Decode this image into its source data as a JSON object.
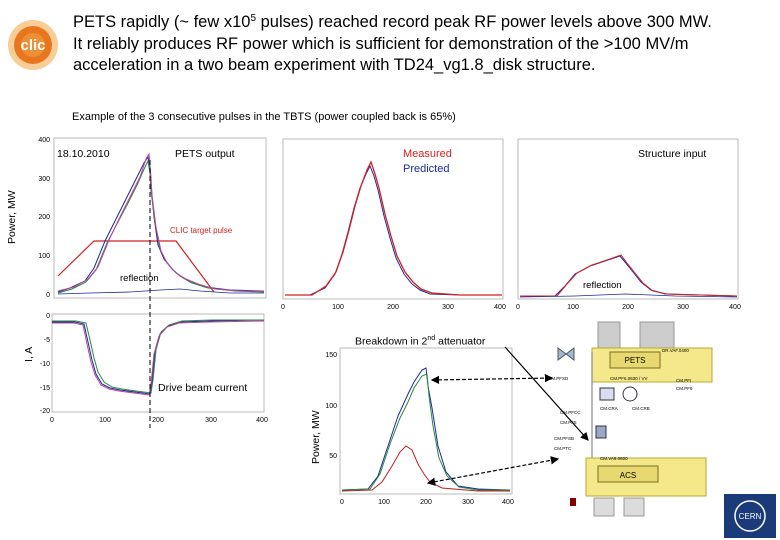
{
  "logo": {
    "text": "clic",
    "colors": {
      "brand": "#e8761e"
    }
  },
  "headline": {
    "line1_a": "PETS rapidly (~ few x10",
    "line1_sup": "5",
    "line1_b": " pulses) reached record peak RF power levels above 300 MW.",
    "line2": "It reliably produces RF power which is sufficient for demonstration of the >100 MV/m",
    "line3": "acceleration in a two beam experiment with TD24_vg1.8_disk structure."
  },
  "caption": "Example of the 3 consecutive pulses in the TBTS (power coupled back is 65%)",
  "pets_panel": {
    "date": "18.10.2010",
    "title": "PETS output",
    "ylabel": "Power, MW",
    "target_label": "CLIC target pulse",
    "reflection_label": "reflection",
    "yticks": [
      "400",
      "300",
      "200",
      "100",
      "0"
    ]
  },
  "measured_panel": {
    "legend_measured": "Measured",
    "legend_predicted": "Predicted",
    "xticks": [
      "0",
      "100",
      "200",
      "300",
      "400"
    ]
  },
  "structure_panel": {
    "title": "Structure input",
    "reflection_label": "reflection",
    "xticks": [
      "0",
      "100",
      "200",
      "300",
      "400"
    ]
  },
  "current_panel": {
    "ylabel": "I, A",
    "label": "Drive beam current",
    "yticks": [
      "0",
      "-5",
      "-10",
      "-15",
      "-20"
    ],
    "xticks": [
      "0",
      "100",
      "200",
      "300",
      "400"
    ]
  },
  "breakdown_panel": {
    "title_a": "Breakdown in 2",
    "title_sup": "nd",
    "title_b": " attenuator",
    "ylabel": "Power, MW",
    "yticks": [
      "150",
      "100",
      "50"
    ],
    "xticks": [
      "0",
      "100",
      "200",
      "300",
      "400"
    ]
  },
  "schematic": {
    "pets_label": "PETS",
    "acs_label": "ACS",
    "tags": [
      "DR.VAF.0400",
      "CM.PFSD",
      "CM.PF6.0630 / VV",
      "CM.PFI",
      "CM.PF6",
      "CM.CRA",
      "CM.CRB",
      "CM.PFCC",
      "CM.PF5",
      "CM.PFSB",
      "CM.PTC",
      "CM.VA9.0600"
    ],
    "cern_label": "CERN"
  }
}
